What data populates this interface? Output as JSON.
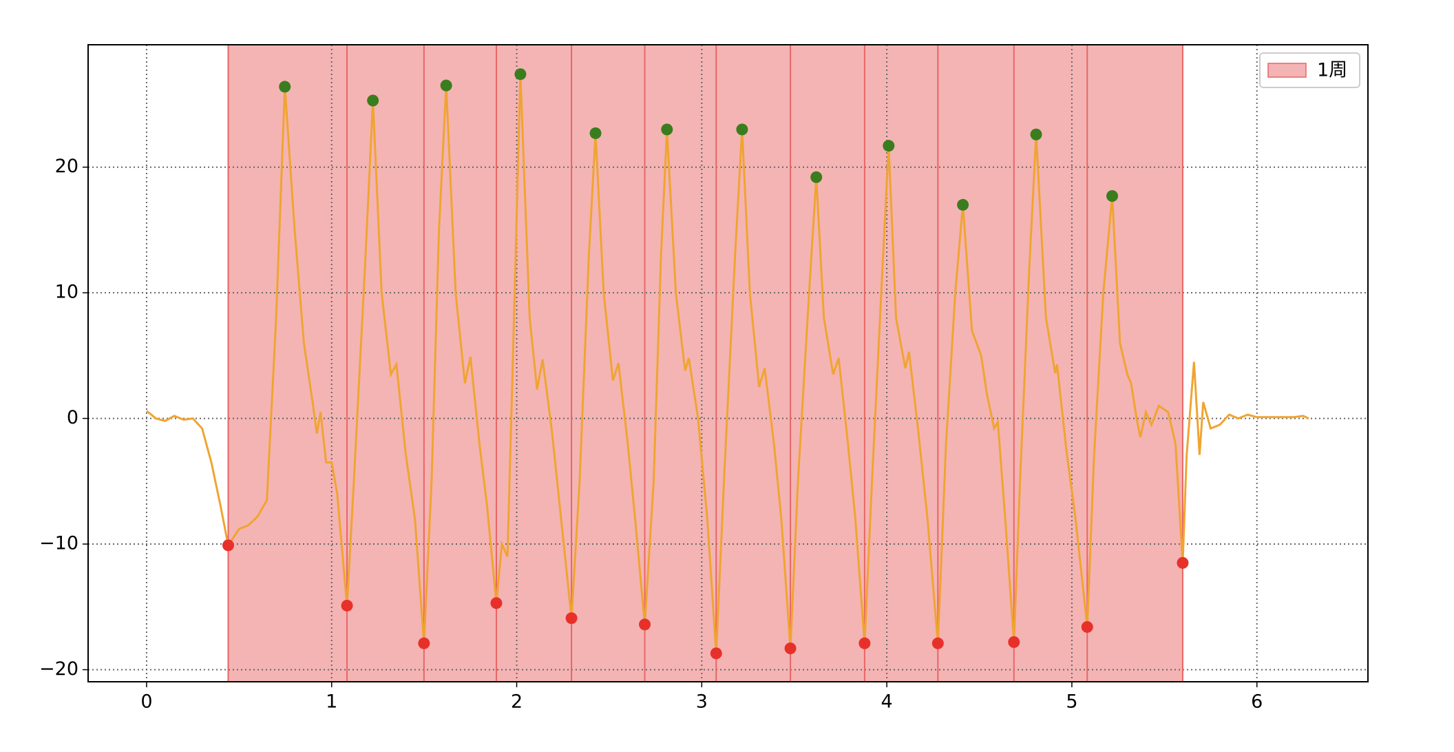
{
  "chart_data": {
    "type": "line",
    "xlim": [
      -0.316,
      6.6
    ],
    "ylim": [
      -20.96,
      29.74
    ],
    "xticks": [
      0,
      1,
      2,
      3,
      4,
      5,
      6
    ],
    "yticks": [
      {
        "value": -20,
        "label": "−20"
      },
      {
        "value": -10,
        "label": "−10"
      },
      0,
      10,
      20
    ],
    "grid": true,
    "legend": "upper right",
    "series": [
      {
        "kind": "line",
        "color": "#f0a431",
        "x": [
          0,
          0.05,
          0.1,
          0.15,
          0.2,
          0.25,
          0.3,
          0.35,
          0.4,
          0.441,
          0.5,
          0.55,
          0.6,
          0.65,
          0.7,
          0.747,
          0.8,
          0.85,
          0.9,
          0.92,
          0.94,
          0.97,
          1.0,
          1.03,
          1.083,
          1.12,
          1.18,
          1.223,
          1.27,
          1.32,
          1.35,
          1.4,
          1.45,
          1.499,
          1.54,
          1.58,
          1.619,
          1.67,
          1.72,
          1.75,
          1.8,
          1.84,
          1.89,
          1.92,
          1.95,
          1.98,
          2.02,
          2.07,
          2.11,
          2.14,
          2.19,
          2.24,
          2.296,
          2.34,
          2.39,
          2.426,
          2.47,
          2.52,
          2.55,
          2.6,
          2.64,
          2.692,
          2.74,
          2.78,
          2.812,
          2.86,
          2.91,
          2.93,
          2.98,
          3.03,
          3.078,
          3.12,
          3.18,
          3.218,
          3.26,
          3.31,
          3.34,
          3.39,
          3.43,
          3.479,
          3.52,
          3.58,
          3.619,
          3.66,
          3.71,
          3.74,
          3.79,
          3.83,
          3.88,
          3.92,
          3.97,
          4.01,
          4.05,
          4.1,
          4.12,
          4.17,
          4.22,
          4.276,
          4.32,
          4.37,
          4.411,
          4.46,
          4.51,
          4.54,
          4.58,
          4.6,
          4.64,
          4.687,
          4.72,
          4.77,
          4.807,
          4.86,
          4.91,
          4.92,
          4.97,
          5.02,
          5.083,
          5.12,
          5.17,
          5.218,
          5.26,
          5.3,
          5.32,
          5.35,
          5.37,
          5.4,
          5.43,
          5.47,
          5.52,
          5.56,
          5.599,
          5.62,
          5.66,
          5.69,
          5.71,
          5.75,
          5.8,
          5.85,
          5.9,
          5.95,
          6.0,
          6.1,
          6.2,
          6.25,
          6.28
        ],
        "values": [
          0.6,
          0,
          -0.2,
          0.2,
          -0.1,
          0,
          -0.8,
          -3.5,
          -7,
          -10.1,
          -8.8,
          -8.5,
          -7.8,
          -6.5,
          8,
          26.4,
          15,
          6,
          1,
          -1.2,
          0.5,
          -3.5,
          -3.5,
          -6,
          -14.9,
          -5,
          12,
          25.3,
          10,
          3.5,
          4.3,
          -2.8,
          -8,
          -17.9,
          -5,
          15,
          26.5,
          10,
          2.8,
          4.9,
          -2.2,
          -7,
          -14.7,
          -10,
          -11,
          5,
          27.4,
          8,
          2.3,
          4.7,
          -1,
          -8,
          -15.9,
          -5,
          13,
          22.7,
          10,
          3,
          4.4,
          -2,
          -8,
          -16.4,
          -5,
          13,
          23,
          10,
          3.8,
          4.8,
          0,
          -8,
          -18.7,
          -5,
          13,
          23,
          10,
          2.5,
          4,
          -2,
          -8,
          -18.3,
          -5,
          10,
          19.2,
          8,
          3.5,
          4.8,
          -2,
          -8,
          -17.9,
          -5,
          10,
          21.7,
          8,
          4,
          5.3,
          -1,
          -8,
          -17.9,
          -2,
          10,
          17,
          7,
          5,
          2,
          -0.8,
          -0.3,
          -8,
          -17.8,
          -5,
          12,
          22.6,
          8,
          3.6,
          4.3,
          -2.5,
          -8,
          -16.6,
          -3,
          10,
          17.7,
          6,
          3.5,
          2.8,
          0,
          -1.5,
          0.5,
          -0.5,
          1,
          0.5,
          -2,
          -11.5,
          -3,
          4.5,
          -2.9,
          1.3,
          -0.8,
          -0.5,
          0.3,
          0,
          0.3,
          0.1,
          0.1,
          0.1,
          0.2,
          0
        ]
      },
      {
        "kind": "scatter",
        "color": "#3a7d1e",
        "x": [
          0.747,
          1.223,
          1.619,
          2.02,
          2.426,
          2.812,
          3.218,
          3.619,
          4.01,
          4.411,
          4.807,
          5.218
        ],
        "values": [
          26.4,
          25.3,
          26.5,
          27.4,
          22.7,
          23,
          23,
          19.2,
          21.7,
          17,
          22.6,
          17.7
        ]
      },
      {
        "kind": "scatter",
        "color": "#e8302a",
        "x": [
          0.441,
          1.083,
          1.499,
          1.89,
          2.296,
          2.692,
          3.078,
          3.479,
          3.88,
          4.276,
          4.687,
          5.083,
          5.599
        ],
        "values": [
          -10.1,
          -14.9,
          -17.9,
          -14.7,
          -15.9,
          -16.4,
          -18.7,
          -18.3,
          -17.9,
          -17.9,
          -17.8,
          -16.6,
          -11.5
        ],
        "span": {
          "name": "1周",
          "fill": "#f4b4b4",
          "edge": "#e86565"
        }
      }
    ]
  }
}
